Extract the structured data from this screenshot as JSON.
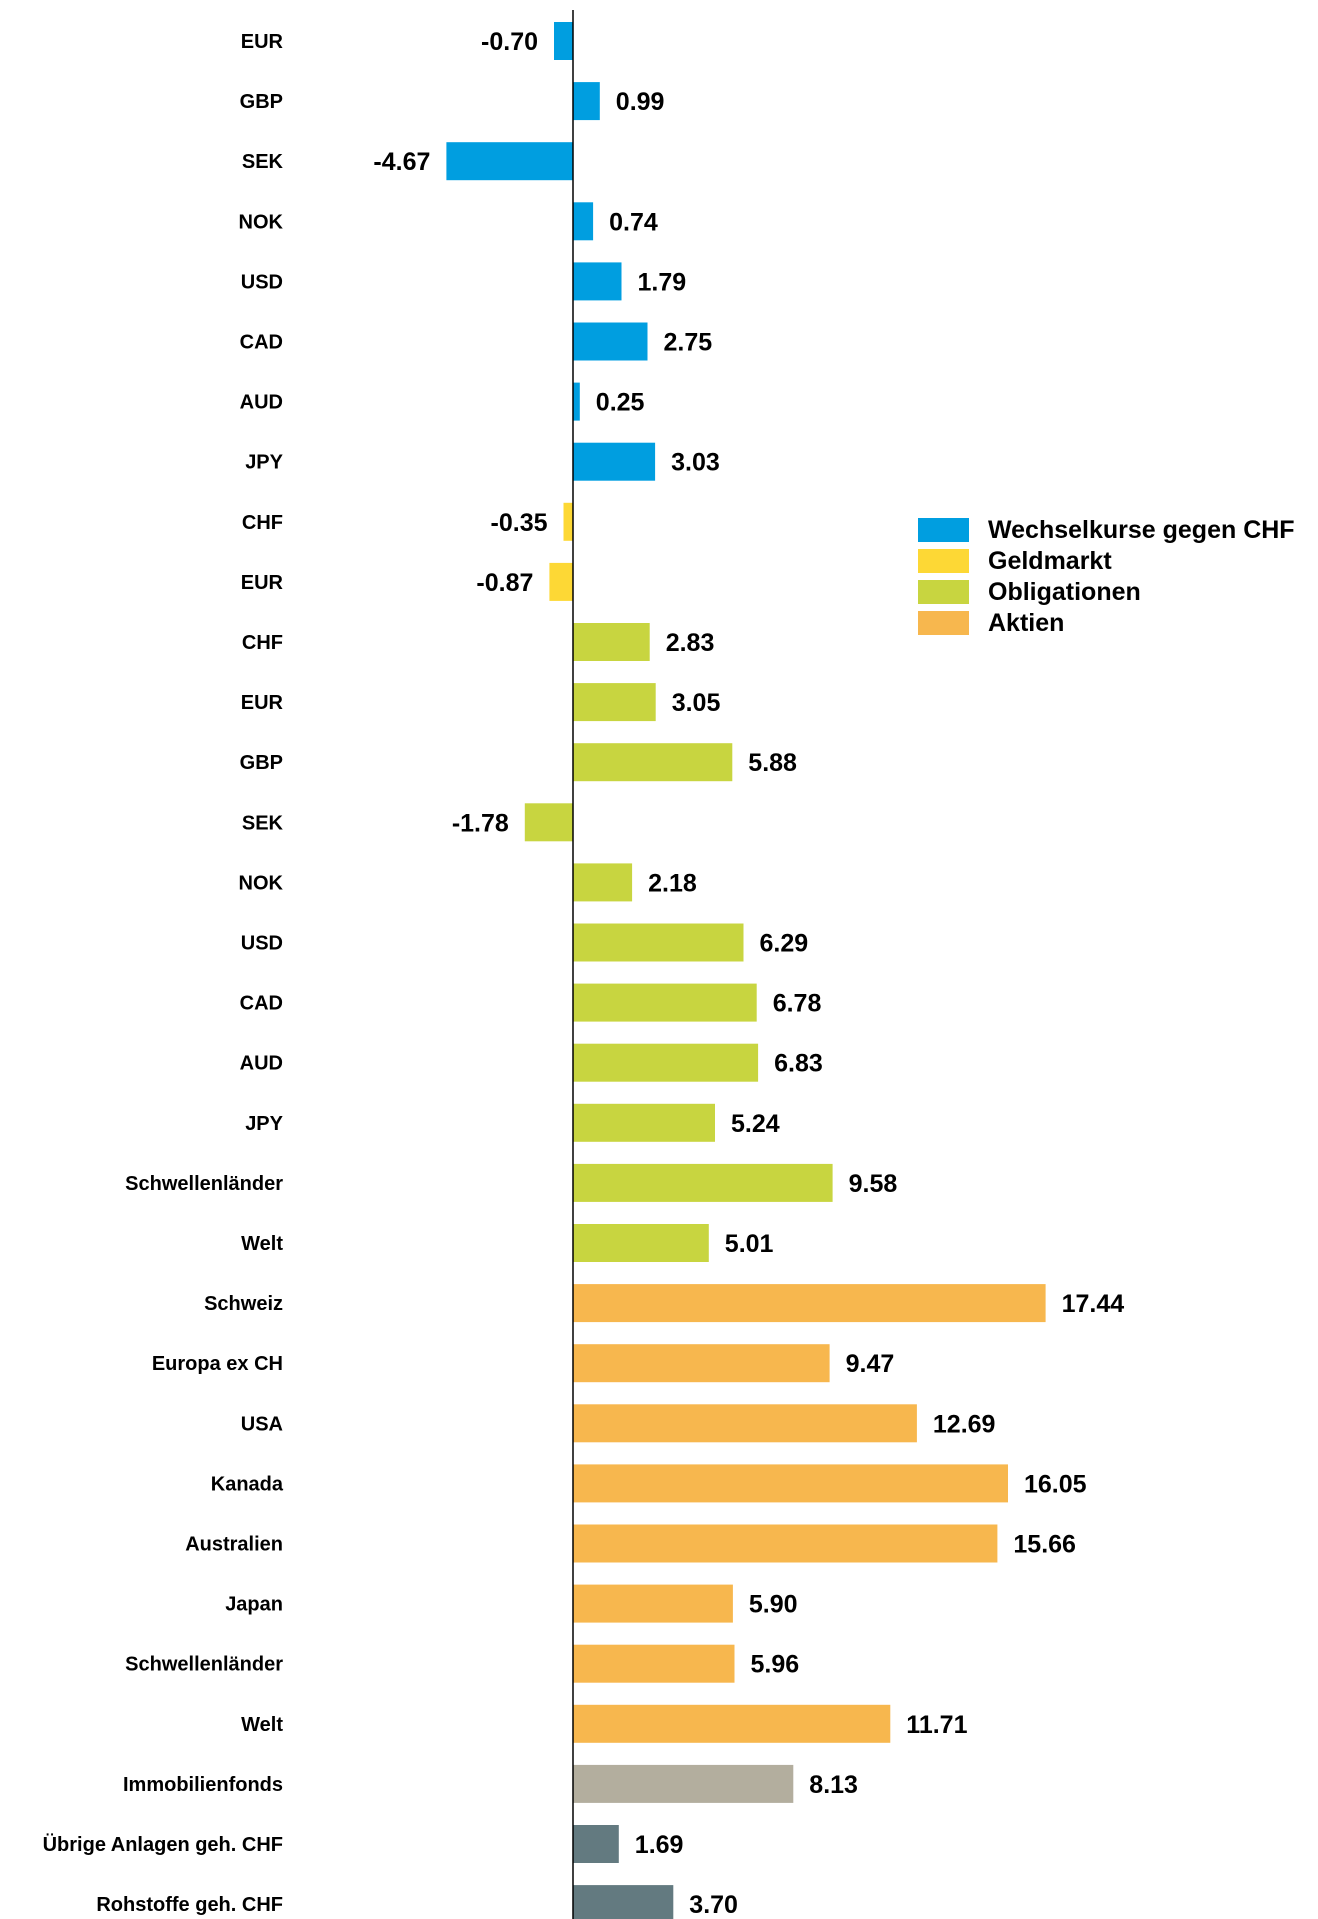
{
  "chart_data": {
    "type": "bar",
    "orientation": "horizontal",
    "categories": [
      "EUR",
      "GBP",
      "SEK",
      "NOK",
      "USD",
      "CAD",
      "AUD",
      "JPY",
      "CHF",
      "EUR",
      "CHF",
      "EUR",
      "GBP",
      "SEK",
      "NOK",
      "USD",
      "CAD",
      "AUD",
      "JPY",
      "Schwellenländer",
      "Welt",
      "Schweiz",
      "Europa ex CH",
      "USA",
      "Kanada",
      "Australien",
      "Japan",
      "Schwellenländer",
      "Welt",
      "Immobilienfonds",
      "Übrige Anlagen geh. CHF",
      "Rohstoffe geh. CHF"
    ],
    "values": [
      -0.7,
      0.99,
      -4.67,
      0.74,
      1.79,
      2.75,
      0.25,
      3.03,
      -0.35,
      -0.87,
      2.83,
      3.05,
      5.88,
      -1.78,
      2.18,
      6.29,
      6.78,
      6.83,
      5.24,
      9.58,
      5.01,
      17.44,
      9.47,
      12.69,
      16.05,
      15.66,
      5.9,
      5.96,
      11.71,
      8.13,
      1.69,
      3.7
    ],
    "value_labels": [
      "-0.70",
      "0.99",
      "-4.67",
      "0.74",
      "1.79",
      "2.75",
      "0.25",
      "3.03",
      "-0.35",
      "-0.87",
      "2.83",
      "3.05",
      "5.88",
      "-1.78",
      "2.18",
      "6.29",
      "6.78",
      "6.83",
      "5.24",
      "9.58",
      "5.01",
      "17.44",
      "9.47",
      "12.69",
      "16.05",
      "15.66",
      "5.90",
      "5.96",
      "11.71",
      "8.13",
      "1.69",
      "3.70"
    ],
    "groups": [
      "fx",
      "fx",
      "fx",
      "fx",
      "fx",
      "fx",
      "fx",
      "fx",
      "money",
      "money",
      "bonds",
      "bonds",
      "bonds",
      "bonds",
      "bonds",
      "bonds",
      "bonds",
      "bonds",
      "bonds",
      "bonds",
      "bonds",
      "equity",
      "equity",
      "equity",
      "equity",
      "equity",
      "equity",
      "equity",
      "equity",
      "realestate",
      "other",
      "other"
    ],
    "group_colors": {
      "fx": "#009ee0",
      "money": "#fdd835",
      "bonds": "#c8d540",
      "equity": "#f7b74e",
      "realestate": "#b3ae9e",
      "other": "#637a80"
    },
    "legend": [
      {
        "label": "Wechselkurse gegen CHF",
        "color": "#009ee0"
      },
      {
        "label": "Geldmarkt",
        "color": "#fdd835"
      },
      {
        "label": "Obligationen",
        "color": "#c8d540"
      },
      {
        "label": "Aktien",
        "color": "#f7b74e"
      }
    ],
    "legend_position": "right",
    "grid": false,
    "xlim": [
      -5.0,
      20.0
    ]
  }
}
